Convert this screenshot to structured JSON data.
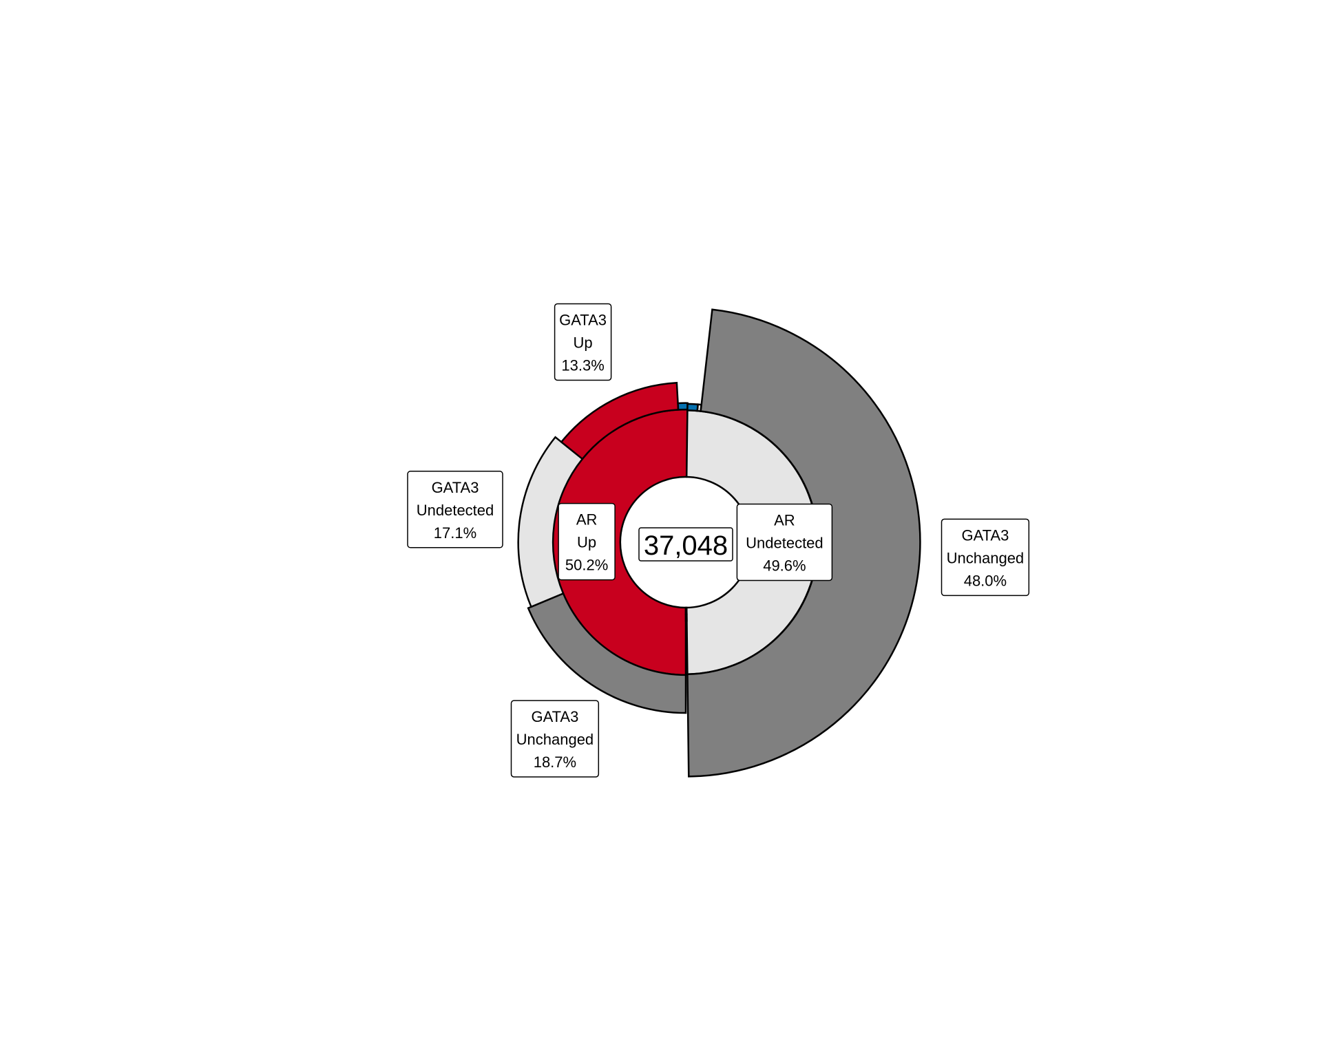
{
  "chart_data": {
    "type": "sunburst",
    "center_label": "37,048",
    "colors": {
      "Up": "#C8001E",
      "Down": "#0571B0",
      "Undetected": "#E5E5E5",
      "Unchanged": "#808080"
    },
    "inner_ring": [
      {
        "name": "AR",
        "category": "Up",
        "value_pct": 50.2,
        "label_lines": [
          "AR",
          "Up",
          "50.2%"
        ],
        "labeled": true
      },
      {
        "name": "AR",
        "category": "Undetected",
        "value_pct": 49.6,
        "label_lines": [
          "AR",
          "Undetected",
          "49.6%"
        ],
        "labeled": true
      },
      {
        "name": "AR",
        "category": "Down",
        "value_pct": 0.2,
        "labeled": false
      }
    ],
    "outer_ring": [
      {
        "parent": "AR Up",
        "name": "GATA3",
        "category": "Unchanged",
        "value_pct": 18.7,
        "label_lines": [
          "GATA3",
          "Unchanged",
          "18.7%"
        ],
        "labeled": true
      },
      {
        "parent": "AR Up",
        "name": "GATA3",
        "category": "Undetected",
        "value_pct": 17.1,
        "label_lines": [
          "GATA3",
          "Undetected",
          "17.1%"
        ],
        "labeled": true
      },
      {
        "parent": "AR Up",
        "name": "GATA3",
        "category": "Up",
        "value_pct": 13.3,
        "label_lines": [
          "GATA3",
          "Up",
          "13.3%"
        ],
        "labeled": true
      },
      {
        "parent": "AR Up",
        "name": "GATA3",
        "category": "Down",
        "value_pct": 1.1,
        "labeled": false
      },
      {
        "parent": "AR Undetected",
        "name": "GATA3",
        "category": "Down",
        "value_pct": 1.2,
        "labeled": false
      },
      {
        "parent": "AR Undetected",
        "name": "GATA3",
        "category": "Undetected",
        "value_pct": 0.4,
        "labeled": false
      },
      {
        "parent": "AR Undetected",
        "name": "GATA3",
        "category": "Unchanged",
        "value_pct": 48.0,
        "label_lines": [
          "GATA3",
          "Unchanged",
          "48.0%"
        ],
        "labeled": true
      },
      {
        "parent": "AR Down",
        "name": "GATA3",
        "category": "Up",
        "value_pct": 0.2,
        "labeled": false
      }
    ]
  }
}
